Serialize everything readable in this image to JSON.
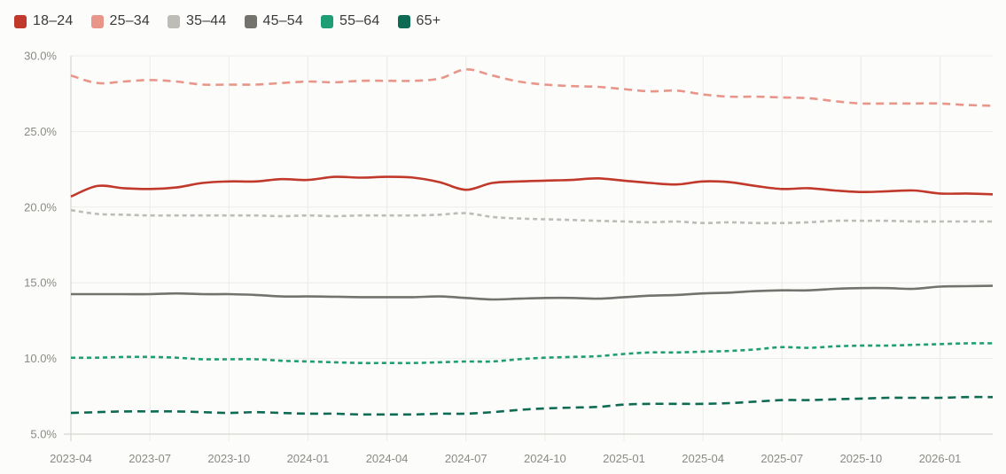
{
  "legend": [
    {
      "label": "18–24",
      "color": "#c0392b"
    },
    {
      "label": "25–34",
      "color": "#e8968a"
    },
    {
      "label": "35–44",
      "color": "#bdbcb7"
    },
    {
      "label": "45–54",
      "color": "#73726d"
    },
    {
      "label": "55–64",
      "color": "#1e9e74"
    },
    {
      "label": "65+",
      "color": "#0e6b53"
    }
  ],
  "chart_data": {
    "type": "line",
    "title": "",
    "xlabel": "",
    "ylabel": "",
    "ylim": [
      5,
      30
    ],
    "y_ticks": [
      "5.0%",
      "10.0%",
      "15.0%",
      "20.0%",
      "25.0%",
      "30.0%"
    ],
    "x_ticks": [
      "2023-04",
      "2023-07",
      "2023-10",
      "2024-01",
      "2024-04",
      "2024-07",
      "2024-10",
      "2025-01",
      "2025-04",
      "2025-07",
      "2025-10",
      "2026-01"
    ],
    "grid": true,
    "legend_position": "top-left",
    "x": [
      "2023-04",
      "2023-05",
      "2023-06",
      "2023-07",
      "2023-08",
      "2023-09",
      "2023-10",
      "2023-11",
      "2023-12",
      "2024-01",
      "2024-02",
      "2024-03",
      "2024-04",
      "2024-05",
      "2024-06",
      "2024-07",
      "2024-08",
      "2024-09",
      "2024-10",
      "2024-11",
      "2024-12",
      "2025-01",
      "2025-02",
      "2025-03",
      "2025-04",
      "2025-05",
      "2025-06",
      "2025-07",
      "2025-08",
      "2025-09",
      "2025-10",
      "2025-11",
      "2025-12",
      "2026-01",
      "2026-02",
      "2026-03"
    ],
    "series": [
      {
        "name": "18–24",
        "style": "solid",
        "color": "#c0392b",
        "values": [
          20.7,
          21.4,
          21.25,
          21.2,
          21.3,
          21.6,
          21.7,
          21.7,
          21.85,
          21.8,
          22.0,
          21.95,
          22.0,
          21.95,
          21.65,
          21.15,
          21.6,
          21.7,
          21.75,
          21.8,
          21.9,
          21.75,
          21.6,
          21.5,
          21.7,
          21.65,
          21.4,
          21.2,
          21.25,
          21.1,
          21.0,
          21.05,
          21.1,
          20.9,
          20.9,
          20.85
        ]
      },
      {
        "name": "25–34",
        "style": "dashed",
        "color": "#e8968a",
        "values": [
          28.7,
          28.2,
          28.3,
          28.4,
          28.3,
          28.1,
          28.1,
          28.1,
          28.2,
          28.3,
          28.25,
          28.35,
          28.35,
          28.35,
          28.5,
          29.1,
          28.7,
          28.3,
          28.1,
          28.0,
          27.95,
          27.8,
          27.65,
          27.7,
          27.45,
          27.3,
          27.3,
          27.25,
          27.2,
          27.0,
          26.85,
          26.85,
          26.85,
          26.85,
          26.75,
          26.7
        ]
      },
      {
        "name": "35–44",
        "style": "dotted",
        "color": "#bdbcb7",
        "values": [
          19.8,
          19.55,
          19.5,
          19.45,
          19.45,
          19.45,
          19.45,
          19.45,
          19.4,
          19.45,
          19.4,
          19.45,
          19.45,
          19.45,
          19.5,
          19.6,
          19.35,
          19.25,
          19.2,
          19.15,
          19.1,
          19.05,
          19.0,
          19.05,
          18.95,
          19.0,
          18.95,
          18.95,
          19.0,
          19.1,
          19.1,
          19.1,
          19.05,
          19.05,
          19.05,
          19.05
        ]
      },
      {
        "name": "45–54",
        "style": "solid",
        "color": "#73726d",
        "values": [
          14.25,
          14.25,
          14.25,
          14.25,
          14.3,
          14.25,
          14.25,
          14.2,
          14.1,
          14.1,
          14.08,
          14.05,
          14.05,
          14.05,
          14.1,
          14.0,
          13.9,
          13.95,
          14.0,
          14.0,
          13.95,
          14.05,
          14.15,
          14.2,
          14.3,
          14.35,
          14.45,
          14.5,
          14.5,
          14.6,
          14.65,
          14.65,
          14.6,
          14.75,
          14.78,
          14.8
        ]
      },
      {
        "name": "55–64",
        "style": "dotted",
        "color": "#1e9e74",
        "values": [
          10.05,
          10.05,
          10.1,
          10.1,
          10.05,
          9.95,
          9.95,
          9.95,
          9.85,
          9.8,
          9.75,
          9.7,
          9.7,
          9.7,
          9.75,
          9.8,
          9.8,
          9.95,
          10.05,
          10.1,
          10.15,
          10.3,
          10.4,
          10.4,
          10.45,
          10.5,
          10.6,
          10.75,
          10.7,
          10.8,
          10.85,
          10.85,
          10.9,
          10.95,
          11.0,
          11.0
        ]
      },
      {
        "name": "65+",
        "style": "dashed",
        "color": "#0e6b53",
        "values": [
          6.4,
          6.45,
          6.5,
          6.5,
          6.5,
          6.45,
          6.4,
          6.45,
          6.4,
          6.35,
          6.35,
          6.3,
          6.3,
          6.3,
          6.35,
          6.35,
          6.45,
          6.6,
          6.7,
          6.75,
          6.8,
          6.95,
          7.0,
          7.0,
          7.0,
          7.05,
          7.15,
          7.25,
          7.25,
          7.3,
          7.35,
          7.4,
          7.4,
          7.4,
          7.45,
          7.45
        ]
      }
    ]
  }
}
